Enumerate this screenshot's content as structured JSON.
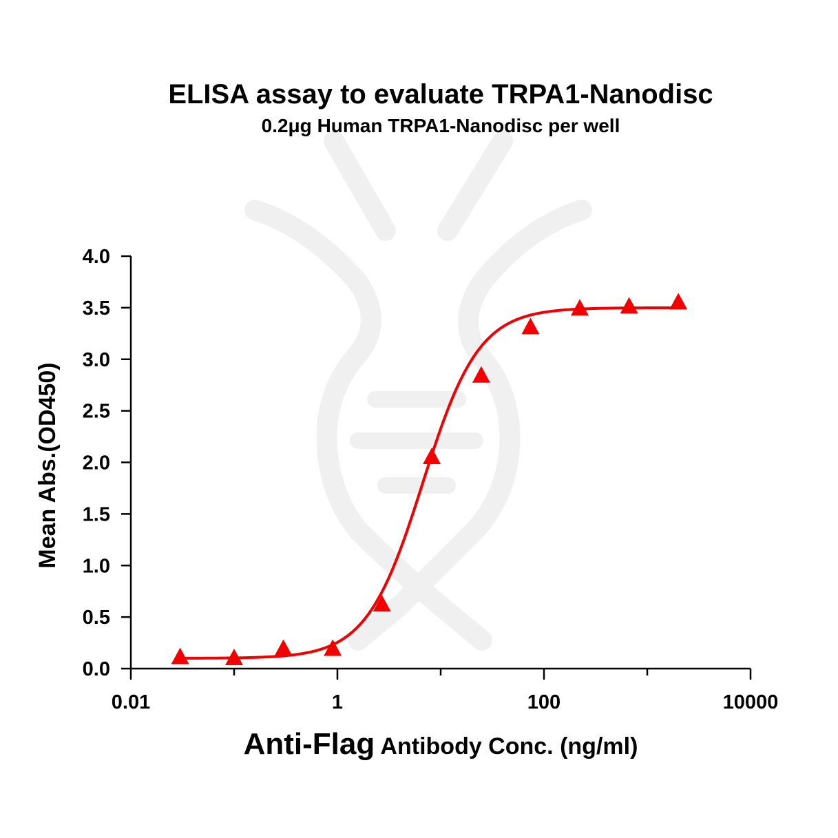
{
  "chart_data": {
    "type": "scatter",
    "title": "ELISA assay to evaluate TRPA1-Nanodisc",
    "subtitle": "0.2μg Human TRPA1-Nanodisc per well",
    "xlabel_main": "Anti-Flag",
    "xlabel_rest": " Antibody Conc. (ng/ml)",
    "ylabel": "Mean Abs.(OD450)",
    "xscale": "log",
    "xlim": [
      0.01,
      10000
    ],
    "ylim": [
      0,
      4.0
    ],
    "xticks": [
      0.01,
      1,
      100,
      10000
    ],
    "xtick_labels": [
      "0.01",
      "1",
      "100",
      "10000"
    ],
    "yticks": [
      0,
      0.5,
      1.0,
      1.5,
      2.0,
      2.5,
      3.0,
      3.5,
      4.0
    ],
    "ytick_labels": [
      "0.0",
      "0.5",
      "1.0",
      "1.5",
      "2.0",
      "2.5",
      "3.0",
      "3.5",
      "4.0"
    ],
    "grid": false,
    "legend": "none",
    "marker_color": "#f20000",
    "curve_color": "#f20000",
    "marker": "triangle",
    "series": [
      {
        "x": [
          0.03,
          0.1,
          0.3,
          0.9,
          2.7,
          8.2,
          24.7,
          74,
          222,
          667,
          2000
        ],
        "y": [
          0.11,
          0.1,
          0.19,
          0.19,
          0.62,
          2.05,
          2.84,
          3.31,
          3.49,
          3.51,
          3.55
        ]
      }
    ],
    "fit": {
      "model": "4PL",
      "bottom": 0.1,
      "top": 3.5,
      "ec50": 6.7,
      "hill": 1.6
    }
  }
}
